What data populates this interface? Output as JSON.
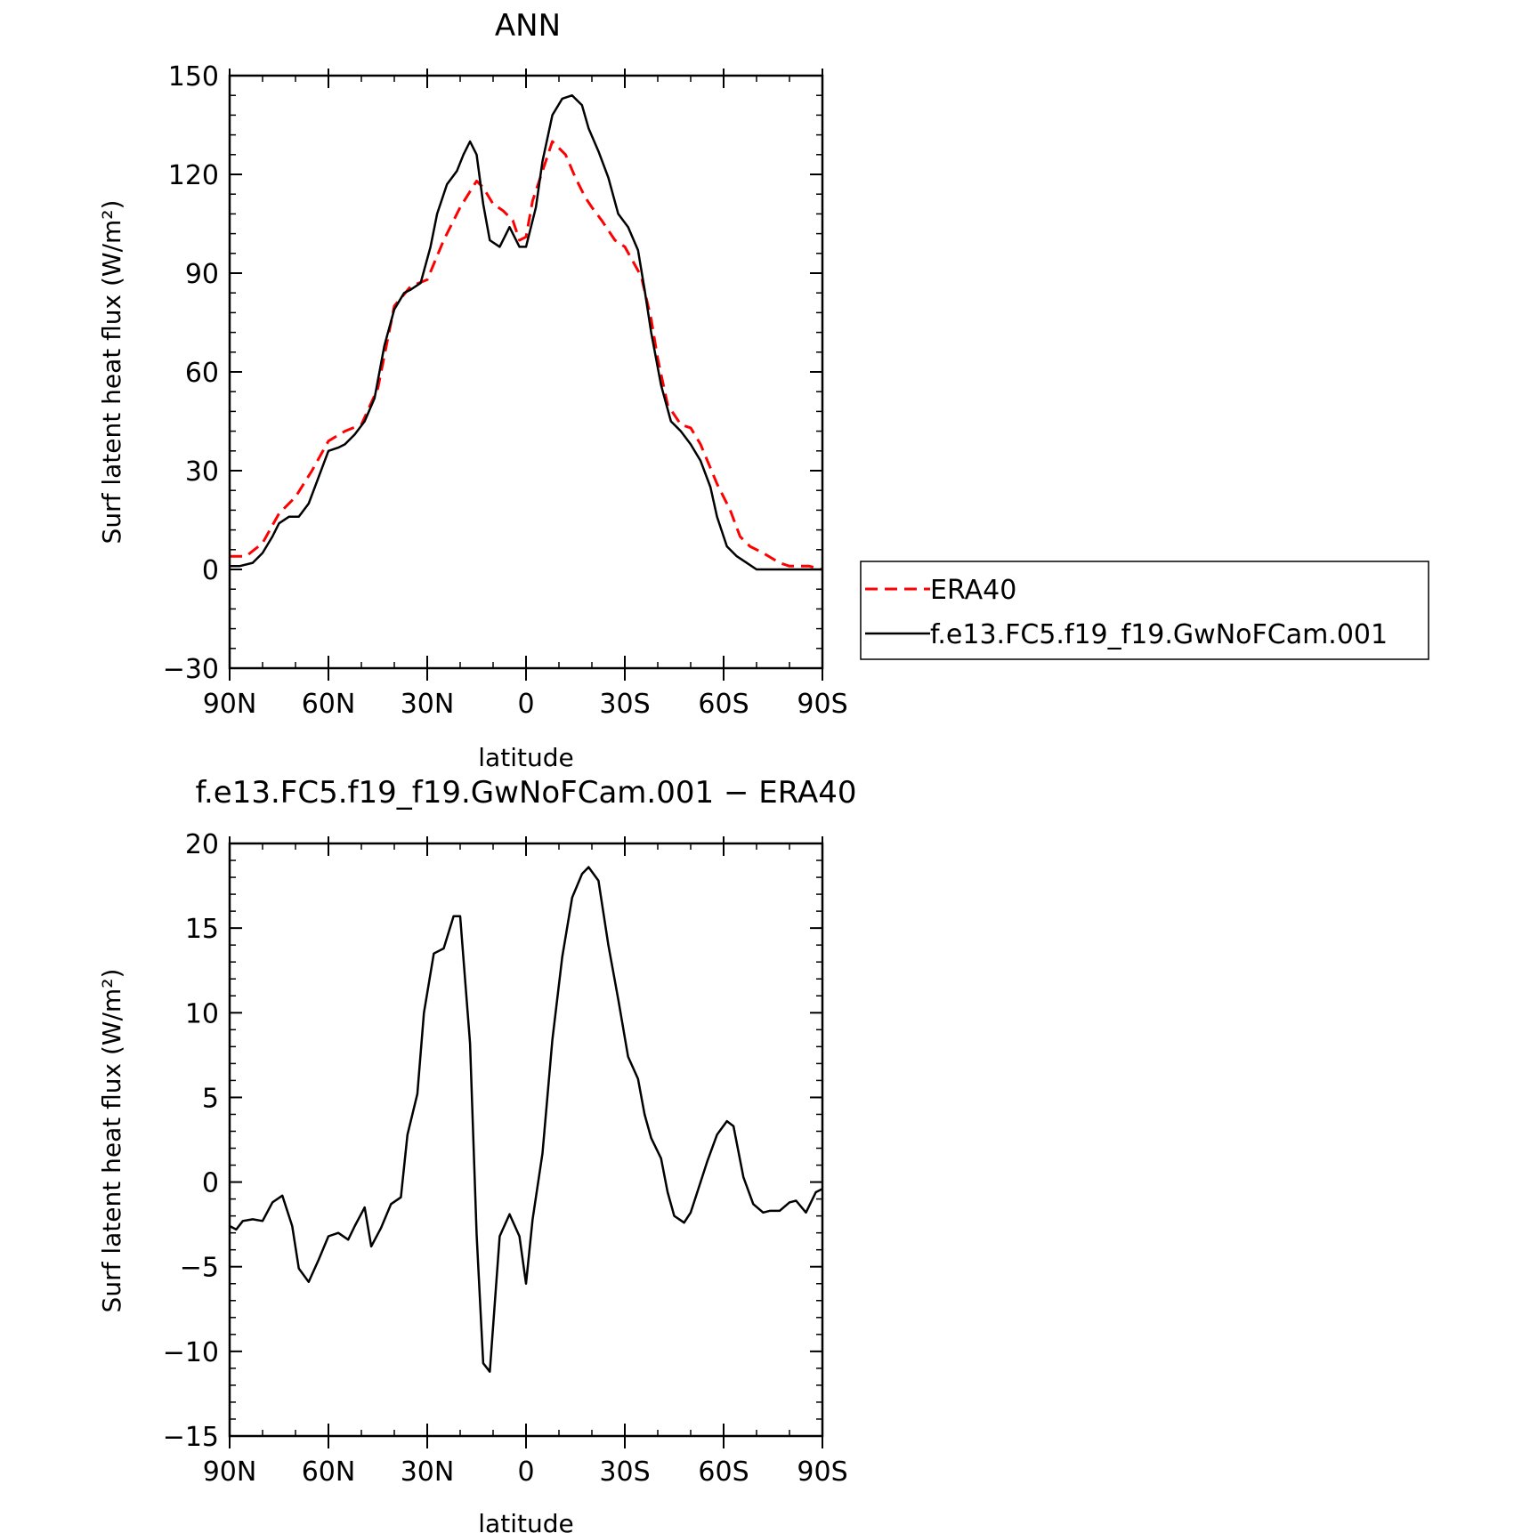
{
  "chart_data": [
    {
      "type": "line",
      "title": "ANN",
      "xlabel": "latitude",
      "ylabel": "Surf latent heat flux (W/m²)",
      "xlim": [
        90,
        -90
      ],
      "ylim": [
        -30,
        150
      ],
      "x_tick_values": [
        90,
        60,
        30,
        0,
        -30,
        -60,
        -90
      ],
      "x_tick_labels": [
        "90N",
        "60N",
        "30N",
        "0",
        "30S",
        "60S",
        "90S"
      ],
      "y_tick_values": [
        -30,
        0,
        30,
        60,
        90,
        120,
        150
      ],
      "y_tick_labels": [
        "−30",
        "0",
        "30",
        "60",
        "90",
        "120",
        "150"
      ],
      "grid": false,
      "legend": "right",
      "series": [
        {
          "name": "ERA40",
          "color": "#ff0000",
          "dash": "dashed",
          "x": [
            90,
            85,
            80,
            75,
            70,
            65,
            60,
            55,
            50,
            45,
            40,
            35,
            30,
            25,
            20,
            15,
            13,
            10,
            7,
            4,
            2,
            0,
            -2,
            -5,
            -8,
            -12,
            -15,
            -18,
            -20,
            -23,
            -27,
            -30,
            -35,
            -38,
            -40,
            -43,
            -47,
            -50,
            -53,
            -58,
            -62,
            -65,
            -68,
            -72,
            -77,
            -80,
            -83,
            -86,
            -90
          ],
          "values": [
            4,
            4,
            8,
            17,
            22,
            30,
            39,
            42,
            44,
            55,
            80,
            86,
            88,
            100,
            110,
            118,
            116,
            111,
            109,
            106,
            100,
            101,
            112,
            121,
            130,
            126,
            119,
            113,
            110,
            106,
            100,
            98,
            89,
            76,
            64,
            50,
            44,
            43,
            38,
            26,
            18,
            10,
            7,
            5,
            2,
            1,
            1,
            1,
            0
          ]
        },
        {
          "name": "f.e13.FC5.f19_f19.GwNoFCam.001",
          "color": "#000000",
          "dash": "solid",
          "x": [
            90,
            87,
            83,
            80,
            77,
            75,
            72,
            69,
            66,
            63,
            60,
            57,
            55,
            52,
            49,
            46,
            43,
            40,
            37,
            35,
            32,
            29,
            27,
            24,
            21,
            19,
            17,
            15,
            13,
            11,
            8,
            5,
            2,
            0,
            -3,
            -5,
            -8,
            -11,
            -14,
            -17,
            -19,
            -22,
            -25,
            -28,
            -31,
            -34,
            -36,
            -38,
            -41,
            -44,
            -47,
            -50,
            -53,
            -56,
            -58,
            -61,
            -64,
            -67,
            -70,
            -73,
            -76,
            -79,
            -82,
            -85,
            -88,
            -90
          ],
          "values": [
            1,
            1,
            2,
            5,
            10,
            14,
            16,
            16,
            20,
            28,
            36,
            37,
            38,
            41,
            45,
            52,
            68,
            79,
            84,
            85,
            87,
            98,
            108,
            117,
            121,
            126,
            130,
            126,
            111,
            100,
            98,
            104,
            98,
            98,
            110,
            124,
            138,
            143,
            144,
            141,
            134,
            127,
            119,
            108,
            104,
            97,
            85,
            72,
            56,
            45,
            42,
            38,
            33,
            25,
            16,
            7,
            4,
            2,
            0,
            0,
            0,
            0,
            0,
            0,
            0,
            0
          ]
        }
      ]
    },
    {
      "type": "line",
      "title": "f.e13.FC5.f19_f19.GwNoFCam.001 − ERA40",
      "xlabel": "latitude",
      "ylabel": "Surf latent heat flux (W/m²)",
      "xlim": [
        90,
        -90
      ],
      "ylim": [
        -15,
        20
      ],
      "x_tick_values": [
        90,
        60,
        30,
        0,
        -30,
        -60,
        -90
      ],
      "x_tick_labels": [
        "90N",
        "60N",
        "30N",
        "0",
        "30S",
        "60S",
        "90S"
      ],
      "y_tick_values": [
        -15,
        -10,
        -5,
        0,
        5,
        10,
        15,
        20
      ],
      "y_tick_labels": [
        "−15",
        "−10",
        "−5",
        "0",
        "5",
        "10",
        "15",
        "20"
      ],
      "grid": false,
      "series": [
        {
          "name": "",
          "color": "#000000",
          "dash": "solid",
          "x": [
            90,
            88,
            86,
            83,
            80,
            77,
            74,
            71,
            69,
            66,
            63,
            60,
            57,
            54,
            52,
            49,
            47,
            44,
            41,
            38,
            36,
            33,
            31,
            28,
            25,
            22,
            20,
            17,
            15,
            13,
            11,
            8,
            5,
            2,
            0,
            -2,
            -5,
            -8,
            -11,
            -14,
            -17,
            -19,
            -22,
            -25,
            -28,
            -31,
            -34,
            -36,
            -38,
            -41,
            -43,
            -45,
            -48,
            -50,
            -52,
            -55,
            -58,
            -61,
            -63,
            -66,
            -69,
            -72,
            -74,
            -77,
            -80,
            -82,
            -85,
            -88,
            -90
          ],
          "values": [
            -2.6,
            -2.8,
            -2.3,
            -2.2,
            -2.3,
            -1.2,
            -0.8,
            -2.6,
            -5.1,
            -5.9,
            -4.6,
            -3.2,
            -3.0,
            -3.4,
            -2.6,
            -1.5,
            -3.8,
            -2.7,
            -1.3,
            -0.9,
            2.8,
            5.2,
            10.0,
            13.5,
            13.8,
            15.7,
            15.7,
            8.2,
            -3.1,
            -10.7,
            -11.2,
            -3.2,
            -1.9,
            -3.2,
            -6.0,
            -2.2,
            1.7,
            8.4,
            13.3,
            16.8,
            18.2,
            18.6,
            17.8,
            14.0,
            10.8,
            7.4,
            6.1,
            4.0,
            2.6,
            1.4,
            -0.6,
            -2.0,
            -2.4,
            -1.8,
            -0.6,
            1.2,
            2.8,
            3.6,
            3.3,
            0.3,
            -1.3,
            -1.8,
            -1.7,
            -1.7,
            -1.2,
            -1.1,
            -1.8,
            -0.6,
            -0.4
          ]
        }
      ]
    }
  ]
}
